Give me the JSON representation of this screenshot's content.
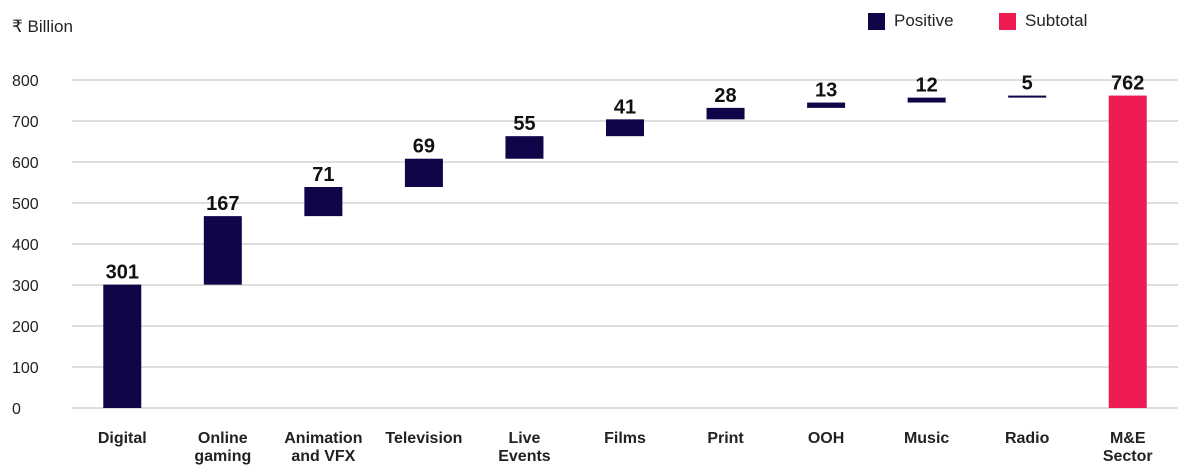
{
  "chart_data": {
    "type": "waterfall",
    "unit_label": "₹ Billion",
    "legend": [
      {
        "name": "Positive",
        "color": "#110549"
      },
      {
        "name": "Subtotal",
        "color": "#ee1b53"
      }
    ],
    "categories": [
      [
        "Digital"
      ],
      [
        "Online",
        "gaming"
      ],
      [
        "Animation",
        "and VFX"
      ],
      [
        "Television"
      ],
      [
        "Live",
        "Events"
      ],
      [
        "Films"
      ],
      [
        "Print"
      ],
      [
        "OOH"
      ],
      [
        "Music"
      ],
      [
        "Radio"
      ],
      [
        "M&E",
        "Sector"
      ]
    ],
    "values": [
      301,
      167,
      71,
      69,
      55,
      41,
      28,
      13,
      12,
      5,
      762
    ],
    "kinds": [
      "positive",
      "positive",
      "positive",
      "positive",
      "positive",
      "positive",
      "positive",
      "positive",
      "positive",
      "positive",
      "subtotal"
    ],
    "ylim": [
      0,
      800
    ],
    "yticks": [
      0,
      100,
      200,
      300,
      400,
      500,
      600,
      700,
      800
    ],
    "grid": true,
    "legend_position": "top-right"
  }
}
